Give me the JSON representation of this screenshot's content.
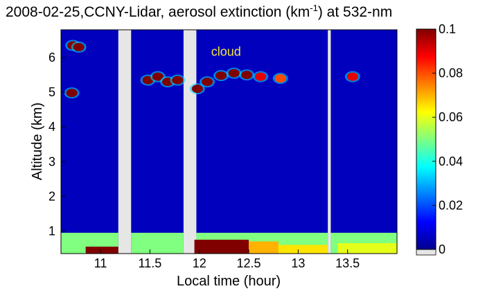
{
  "chart_data": {
    "type": "heatmap",
    "title_main": "2008-02-25,CCNY-Lidar, aerosol extinction (km",
    "title_sup": "-1",
    "title_tail": ") at 532-nm",
    "xlabel": "Local time (hour)",
    "ylabel": "Altitude (km)",
    "xlim": [
      10.6,
      14.0
    ],
    "ylim": [
      0.35,
      6.8
    ],
    "x_ticks": [
      11,
      11.5,
      12,
      12.5,
      13,
      13.5
    ],
    "x_tick_labels": [
      "11",
      "11.5",
      "12",
      "12.5",
      "13",
      "13.5"
    ],
    "y_ticks": [
      1,
      2,
      3,
      4,
      5,
      6
    ],
    "y_tick_labels": [
      "1",
      "2",
      "3",
      "4",
      "5",
      "6"
    ],
    "data_segments": [
      [
        10.6,
        11.18
      ],
      [
        11.31,
        11.84
      ],
      [
        11.97,
        13.3
      ],
      [
        13.33,
        14.0
      ]
    ],
    "colorbar": {
      "min": 0,
      "max": 0.1,
      "ticks": [
        0,
        0.02,
        0.04,
        0.06,
        0.08,
        0.1
      ],
      "tick_labels": [
        "0",
        "0.02",
        "0.04",
        "0.06",
        "0.08",
        "0.1"
      ],
      "colormap": "jet"
    },
    "background_extinction": 0.006,
    "boundary_layer": {
      "top_altitude_km": 0.95,
      "extinction": 0.05,
      "enhanced_bursts": [
        {
          "x_start": 10.85,
          "x_end": 11.18,
          "y_top": 0.55,
          "value": 0.1
        },
        {
          "x_start": 11.95,
          "x_end": 12.5,
          "y_top": 0.75,
          "value": 0.1
        },
        {
          "x_start": 12.5,
          "x_end": 12.8,
          "y_top": 0.7,
          "value": 0.07
        },
        {
          "x_start": 12.8,
          "x_end": 13.3,
          "y_top": 0.6,
          "value": 0.065
        },
        {
          "x_start": 13.4,
          "x_end": 14.0,
          "y_top": 0.65,
          "value": 0.06
        }
      ]
    },
    "features": [
      {
        "x": 10.72,
        "y": 6.35,
        "value": 0.1
      },
      {
        "x": 10.78,
        "y": 6.3,
        "value": 0.1
      },
      {
        "x": 10.71,
        "y": 4.98,
        "value": 0.1
      },
      {
        "x": 11.48,
        "y": 5.35,
        "value": 0.1
      },
      {
        "x": 11.58,
        "y": 5.45,
        "value": 0.1
      },
      {
        "x": 11.68,
        "y": 5.3,
        "value": 0.1
      },
      {
        "x": 11.78,
        "y": 5.35,
        "value": 0.1
      },
      {
        "x": 11.98,
        "y": 5.1,
        "value": 0.1
      },
      {
        "x": 12.08,
        "y": 5.3,
        "value": 0.1
      },
      {
        "x": 12.22,
        "y": 5.48,
        "value": 0.1
      },
      {
        "x": 12.35,
        "y": 5.55,
        "value": 0.1
      },
      {
        "x": 12.48,
        "y": 5.5,
        "value": 0.1
      },
      {
        "x": 12.62,
        "y": 5.45,
        "value": 0.09
      },
      {
        "x": 12.82,
        "y": 5.4,
        "value": 0.08
      },
      {
        "x": 13.55,
        "y": 5.45,
        "value": 0.09
      }
    ],
    "annotations": [
      {
        "text": "cloud",
        "x": 12.27,
        "y": 6.05,
        "color": "#f5e642"
      }
    ]
  }
}
